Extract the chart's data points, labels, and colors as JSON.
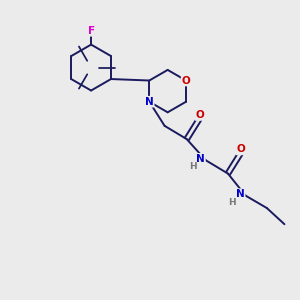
{
  "background_color": "#ebebeb",
  "bond_color": "#1a1a5e",
  "bond_width": 1.4,
  "atom_colors": {
    "F": "#dd00cc",
    "O": "#cc0000",
    "N": "#0000cc",
    "H": "#777777"
  },
  "figsize": [
    3.0,
    3.0
  ],
  "dpi": 100,
  "xlim": [
    0,
    10
  ],
  "ylim": [
    0,
    10
  ]
}
